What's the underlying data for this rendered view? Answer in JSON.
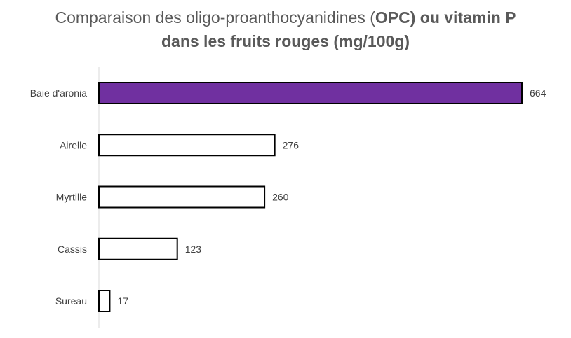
{
  "chart_data": {
    "type": "bar",
    "orientation": "horizontal",
    "title_parts": [
      {
        "text": "Comparaison des oligo-proanthocyanidines (",
        "bold": false
      },
      {
        "text": "OPC) ou vitamin P",
        "bold": true
      }
    ],
    "title_line2": "dans les fruits rouges (mg/100g)",
    "xlabel": "",
    "ylabel": "",
    "categories": [
      "Baie d'aronia",
      "Airelle",
      "Myrtille",
      "Cassis",
      "Sureau"
    ],
    "values": [
      664,
      276,
      260,
      123,
      17
    ],
    "data_labels": [
      "664",
      "276",
      "260",
      "123",
      "17"
    ],
    "xlim": [
      0,
      664
    ],
    "grid": false,
    "legend": "none",
    "highlight_index": 0,
    "colors": {
      "highlight_fill": "#7030A0",
      "default_fill": "#FFFFFF",
      "bar_stroke": "#000000",
      "axis": "#D9D9D9",
      "title": "#595959",
      "label": "#404040"
    }
  }
}
